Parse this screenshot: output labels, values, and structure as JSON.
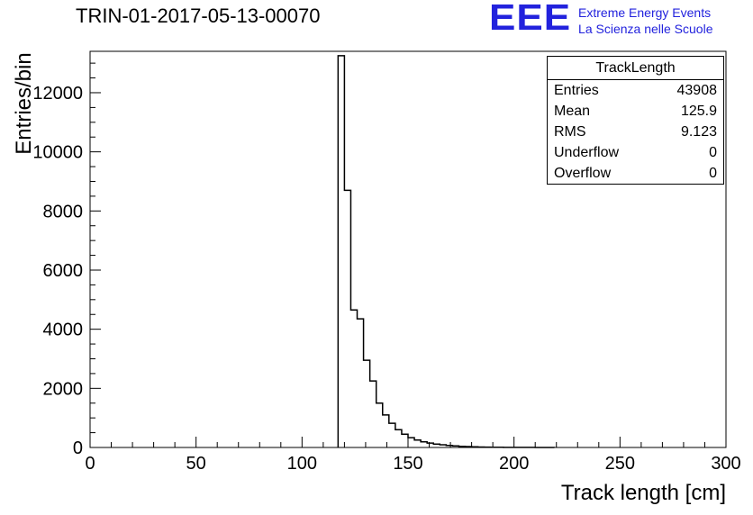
{
  "header": {
    "title": "TRIN-01-2017-05-13-00070",
    "logo": {
      "text": "EEE",
      "line1": "Extreme Energy Events",
      "line2": "La Scienza nelle Scuole",
      "color": "#2222dd"
    }
  },
  "stats_box": {
    "title": "TrackLength",
    "rows": [
      {
        "label": "Entries",
        "value": "43908"
      },
      {
        "label": "Mean",
        "value": "125.9"
      },
      {
        "label": "RMS",
        "value": "9.123"
      },
      {
        "label": "Underflow",
        "value": "0"
      },
      {
        "label": "Overflow",
        "value": "0"
      }
    ]
  },
  "chart_data": {
    "type": "bar",
    "style": "step-histogram",
    "title": "TRIN-01-2017-05-13-00070",
    "xlabel": "Track length [cm]",
    "ylabel": "Entries/bin",
    "xlim": [
      0,
      300
    ],
    "ylim": [
      0,
      13400
    ],
    "x_major_ticks": [
      0,
      50,
      100,
      150,
      200,
      250,
      300
    ],
    "y_major_ticks": [
      0,
      2000,
      4000,
      6000,
      8000,
      10000,
      12000
    ],
    "x_minor_step": 10,
    "y_minor_step": 500,
    "grid": false,
    "legend": false,
    "line_color": "#000000",
    "bin_width": 3,
    "bins": [
      [
        117,
        13250
      ],
      [
        120,
        8700
      ],
      [
        123,
        4650
      ],
      [
        126,
        4350
      ],
      [
        129,
        2950
      ],
      [
        132,
        2250
      ],
      [
        135,
        1500
      ],
      [
        138,
        1100
      ],
      [
        141,
        820
      ],
      [
        144,
        600
      ],
      [
        147,
        450
      ],
      [
        150,
        330
      ],
      [
        153,
        250
      ],
      [
        156,
        190
      ],
      [
        159,
        150
      ],
      [
        162,
        115
      ],
      [
        165,
        90
      ],
      [
        168,
        70
      ],
      [
        171,
        55
      ],
      [
        174,
        40
      ],
      [
        177,
        30
      ],
      [
        180,
        22
      ],
      [
        183,
        16
      ],
      [
        186,
        12
      ],
      [
        189,
        9
      ],
      [
        192,
        7
      ],
      [
        195,
        5
      ],
      [
        198,
        4
      ],
      [
        201,
        3
      ],
      [
        204,
        2
      ],
      [
        207,
        2
      ],
      [
        210,
        1
      ],
      [
        213,
        1
      ],
      [
        216,
        1
      ]
    ]
  }
}
